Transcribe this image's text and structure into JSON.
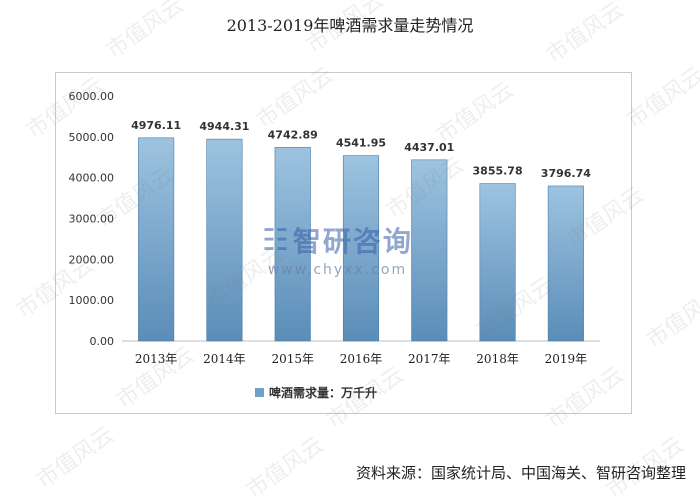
{
  "title": "2013-2019年啤酒需求量走势情况",
  "source": "资料来源：国家统计局、中国海关、智研咨询整理",
  "watermark": {
    "brand": "智研咨询",
    "url": "www.chyxx.com",
    "tile_text": "市值风云"
  },
  "colors": {
    "bar_top": "#9dc3e0",
    "bar_bottom": "#5b8db8",
    "bar_stroke": "#4a7ea8",
    "axis": "#bfbfbf",
    "legend_swatch": "#6fa0c8"
  },
  "chart_data": {
    "type": "bar",
    "categories": [
      "2013年",
      "2014年",
      "2015年",
      "2016年",
      "2017年",
      "2018年",
      "2019年"
    ],
    "series": [
      {
        "name": "啤酒需求量：万千升",
        "values": [
          4976.11,
          4944.31,
          4742.89,
          4541.95,
          4437.01,
          3855.78,
          3796.74
        ]
      }
    ],
    "value_labels": [
      "4976.11",
      "4944.31",
      "4742.89",
      "4541.95",
      "4437.01",
      "3855.78",
      "3796.74"
    ],
    "ylim": [
      0,
      6000
    ],
    "yticks": [
      "0.00",
      "1000.00",
      "2000.00",
      "3000.00",
      "4000.00",
      "5000.00",
      "6000.00"
    ],
    "legend_position": "bottom",
    "grid": false
  }
}
